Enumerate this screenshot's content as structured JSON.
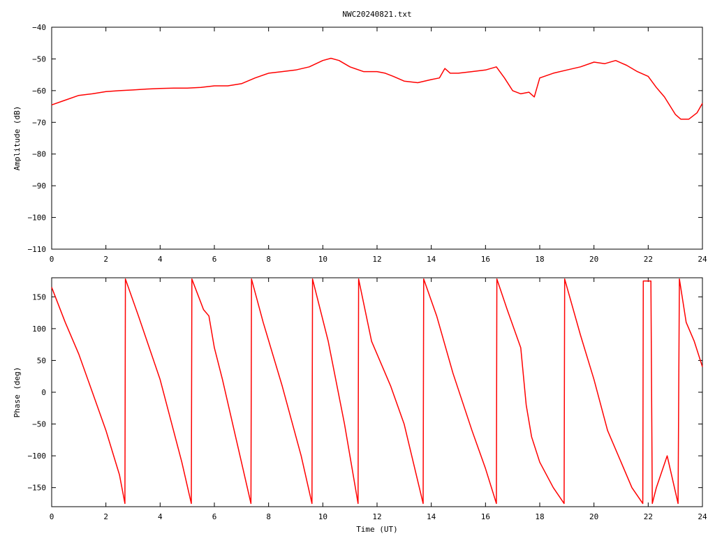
{
  "title": "NWC20240821.txt",
  "colors": {
    "series": "#ff0000",
    "axis": "#000000",
    "background": "#ffffff"
  },
  "chart_data": [
    {
      "type": "line",
      "title": "NWC20240821.txt",
      "xlabel": "",
      "ylabel": "Amplitude (dB)",
      "xlim": [
        0,
        24
      ],
      "ylim": [
        -110,
        -40
      ],
      "xticks": [
        0,
        2,
        4,
        6,
        8,
        10,
        12,
        14,
        16,
        18,
        20,
        22,
        24
      ],
      "yticks": [
        -110,
        -100,
        -90,
        -80,
        -70,
        -60,
        -50,
        -40
      ],
      "ytick_labels": [
        "−110",
        "−100",
        "−90",
        "−80",
        "−70",
        "−60",
        "−50",
        "−40"
      ],
      "grid": false,
      "series": [
        {
          "color": "#ff0000",
          "x": [
            0,
            0.5,
            1,
            1.5,
            2,
            2.5,
            3,
            3.5,
            4,
            4.5,
            5,
            5.5,
            6,
            6.5,
            7,
            7.5,
            8,
            8.5,
            9,
            9.5,
            10,
            10.3,
            10.6,
            11,
            11.5,
            12,
            12.3,
            12.6,
            13,
            13.5,
            14,
            14.3,
            14.5,
            14.7,
            15,
            15.5,
            16,
            16.4,
            16.7,
            17,
            17.3,
            17.6,
            17.8,
            18,
            18.5,
            19,
            19.5,
            20,
            20.4,
            20.8,
            21.2,
            21.6,
            22,
            22.3,
            22.6,
            23,
            23.2,
            23.5,
            23.8,
            24
          ],
          "values": [
            -64.5,
            -63,
            -61.5,
            -61,
            -60.3,
            -60,
            -59.8,
            -59.5,
            -59.3,
            -59.2,
            -59.2,
            -59,
            -58.5,
            -58.5,
            -57.8,
            -56,
            -54.5,
            -54,
            -53.5,
            -52.5,
            -50.5,
            -49.8,
            -50.5,
            -52.5,
            -54,
            -54,
            -54.5,
            -55.5,
            -57,
            -57.5,
            -56.5,
            -56,
            -53,
            -54.5,
            -54.5,
            -54,
            -53.5,
            -52.5,
            -56,
            -60,
            -61,
            -60.5,
            -62,
            -56,
            -54.5,
            -53.5,
            -52.5,
            -51,
            -51.5,
            -50.5,
            -52,
            -54,
            -55.5,
            -59,
            -62,
            -67.5,
            -69,
            -69,
            -67,
            -64
          ]
        }
      ]
    },
    {
      "type": "line",
      "title": "",
      "xlabel": "Time (UT)",
      "ylabel": "Phase (deg)",
      "xlim": [
        0,
        24
      ],
      "ylim": [
        -180,
        180
      ],
      "xticks": [
        0,
        2,
        4,
        6,
        8,
        10,
        12,
        14,
        16,
        18,
        20,
        22,
        24
      ],
      "yticks": [
        -150,
        -100,
        -50,
        0,
        50,
        100,
        150
      ],
      "ytick_labels": [
        "−150",
        "−100",
        "−50",
        "0",
        "50",
        "100",
        "150"
      ],
      "grid": false,
      "series": [
        {
          "color": "#ff0000",
          "x": [
            0,
            0.5,
            1,
            1.5,
            2,
            2.5,
            2.7,
            2.72,
            3.2,
            4,
            4.8,
            5.15,
            5.17,
            5.6,
            5.8,
            6.0,
            6.3,
            7.0,
            7.35,
            7.37,
            7.8,
            8.5,
            9.2,
            9.6,
            9.62,
            10.2,
            10.8,
            11.3,
            11.32,
            11.8,
            12.5,
            13.0,
            13.7,
            13.72,
            14.2,
            14.8,
            15.5,
            16.0,
            16.4,
            16.42,
            16.8,
            17.3,
            17.5,
            17.7,
            18.0,
            18.5,
            18.9,
            18.92,
            19.5,
            20.0,
            20.5,
            21.0,
            21.4,
            21.8,
            21.82,
            22.1,
            22.15,
            22.3,
            22.7,
            23.1,
            23.15,
            23.4,
            23.7,
            24
          ],
          "values": [
            165,
            110,
            60,
            0,
            -60,
            -130,
            -175,
            178,
            120,
            20,
            -110,
            -175,
            178,
            130,
            120,
            70,
            20,
            -110,
            -175,
            178,
            110,
            10,
            -100,
            -175,
            178,
            80,
            -50,
            -175,
            178,
            80,
            10,
            -50,
            -175,
            178,
            120,
            30,
            -60,
            -120,
            -175,
            178,
            130,
            70,
            -20,
            -70,
            -110,
            -150,
            -175,
            178,
            90,
            20,
            -60,
            -110,
            -150,
            -175,
            175,
            175,
            -175,
            -150,
            -100,
            -175,
            178,
            110,
            80,
            40
          ]
        }
      ]
    }
  ]
}
